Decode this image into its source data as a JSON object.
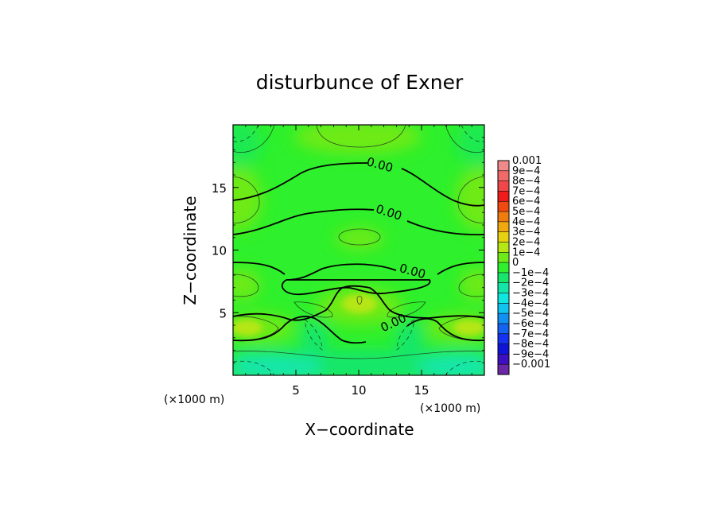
{
  "chart_data": {
    "type": "heatmap",
    "title": "disturbunce of Exner",
    "xlabel": "X−coordinate",
    "ylabel": "Z−coordinate",
    "x_unit": "(×1000 m)",
    "y_unit": "(×1000 m)",
    "xlim": [
      0,
      20
    ],
    "ylim": [
      0,
      20
    ],
    "x_ticks": [
      5,
      10,
      15
    ],
    "y_ticks": [
      5,
      10,
      15
    ],
    "colorbar": {
      "levels": [
        {
          "label": "0.001",
          "color": "#f08a8a"
        },
        {
          "label": "9e−4",
          "color": "#f06a6a"
        },
        {
          "label": "8e−4",
          "color": "#f04848"
        },
        {
          "label": "7e−4",
          "color": "#f01c1c"
        },
        {
          "label": "6e−4",
          "color": "#f04a10"
        },
        {
          "label": "5e−4",
          "color": "#f07c10"
        },
        {
          "label": "4e−4",
          "color": "#f0aa10"
        },
        {
          "label": "3e−4",
          "color": "#e6d210"
        },
        {
          "label": "2e−4",
          "color": "#b6e614"
        },
        {
          "label": "1e−4",
          "color": "#6eea18"
        },
        {
          "label": "0",
          "color": "#2ef02c"
        },
        {
          "label": "−1e−4",
          "color": "#18e66a"
        },
        {
          "label": "−2e−4",
          "color": "#14e6aa"
        },
        {
          "label": "−3e−4",
          "color": "#10e6e0"
        },
        {
          "label": "−4e−4",
          "color": "#10c4f0"
        },
        {
          "label": "−5e−4",
          "color": "#1090f0"
        },
        {
          "label": "−6e−4",
          "color": "#1462f0"
        },
        {
          "label": "−7e−4",
          "color": "#1432f0"
        },
        {
          "label": "−8e−4",
          "color": "#1014d8"
        },
        {
          "label": "−9e−4",
          "color": "#3c10c0"
        },
        {
          "label": "−0.001",
          "color": "#6a28a8"
        }
      ]
    },
    "contour_labels": [
      {
        "text": "0.00",
        "x": 11.6,
        "z": 16.5
      },
      {
        "text": "0.00",
        "x": 12.3,
        "z": 12.7
      },
      {
        "text": "0.00",
        "x": 14.2,
        "z": 8.0
      },
      {
        "text": "0.00",
        "x": 12.9,
        "z": 3.9
      }
    ],
    "field_description_levels": {
      "background": "0",
      "positive_patches": "1e−4 to 2e−4",
      "negative_bottom": "−1e−4 to −2e−4"
    }
  }
}
